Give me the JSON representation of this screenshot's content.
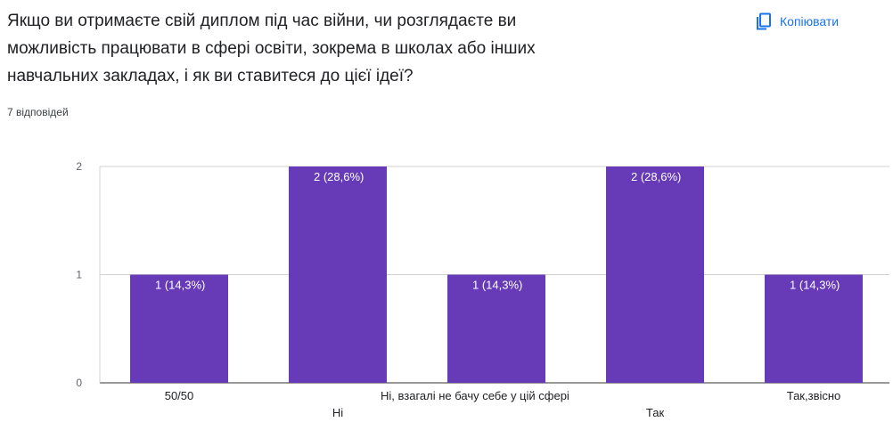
{
  "question": {
    "lines": [
      "Якщо ви отримаєте свій диплом під час війни, чи розглядаєте ви",
      "можливість працювати в сфері освіти, зокрема в школах або інших",
      "навчальних закладах, і як ви ставитеся до цієї ідеї?"
    ]
  },
  "response_count": "7 відповідей",
  "copy_button": {
    "label": "Копіювати",
    "icon": "copy-icon"
  },
  "colors": {
    "bar": "#673ab7",
    "grid": "#d0d0d0",
    "accent": "#1a73e8"
  },
  "chart_data": {
    "type": "bar",
    "categories": [
      "50/50",
      "Ні",
      "Ні, взагалі не бачу себе у цій сфері",
      "Так",
      "Так,звісно"
    ],
    "values": [
      1,
      2,
      1,
      2,
      1
    ],
    "data_labels": [
      "1 (14,3%)",
      "2 (28,6%)",
      "1 (14,3%)",
      "2 (28,6%)",
      "1 (14,3%)"
    ],
    "yticks": [
      0,
      1,
      2
    ],
    "ylim": [
      0,
      2
    ],
    "grid": true
  }
}
